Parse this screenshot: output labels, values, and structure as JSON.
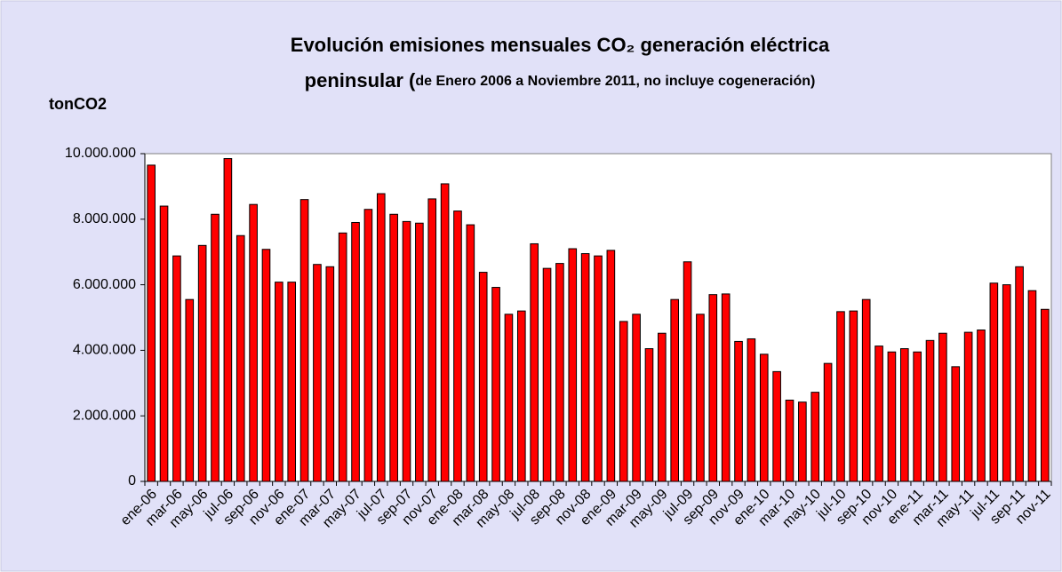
{
  "chart_data": {
    "type": "bar",
    "title_lines": [
      "Evolución emisiones mensuales CO₂ generación eléctrica",
      "peninsular ("
    ],
    "subtitle": "de Enero 2006 a Noviembre 2011, no incluye cogeneración)",
    "y_label": "tonCO2",
    "categories": [
      "ene-06",
      null,
      "mar-06",
      null,
      "may-06",
      null,
      "jul-06",
      null,
      "sep-06",
      null,
      "nov-06",
      null,
      "ene-07",
      null,
      "mar-07",
      null,
      "may-07",
      null,
      "jul-07",
      null,
      "sep-07",
      null,
      "nov-07",
      null,
      "ene-08",
      null,
      "mar-08",
      null,
      "may-08",
      null,
      "jul-08",
      null,
      "sep-08",
      null,
      "nov-08",
      null,
      "ene-09",
      null,
      "mar-09",
      null,
      "may-09",
      null,
      "jul-09",
      null,
      "sep-09",
      null,
      "nov-09",
      null,
      "ene-10",
      null,
      "mar-10",
      null,
      "may-10",
      null,
      "jul-10",
      null,
      "sep-10",
      null,
      "nov-10",
      null,
      "ene-11",
      null,
      "mar-11",
      null,
      "may-11",
      null,
      "jul-11",
      null,
      "sep-11",
      null,
      "nov-11"
    ],
    "values": [
      9650000,
      8400000,
      6880000,
      5550000,
      7200000,
      8150000,
      9850000,
      7500000,
      8450000,
      7080000,
      6080000,
      6080000,
      8600000,
      6620000,
      6550000,
      7580000,
      7900000,
      8300000,
      8780000,
      8150000,
      7930000,
      7880000,
      8620000,
      9080000,
      8250000,
      7830000,
      6380000,
      5920000,
      5100000,
      5200000,
      7250000,
      6500000,
      6650000,
      7100000,
      6950000,
      6880000,
      7050000,
      4880000,
      5100000,
      4050000,
      4520000,
      5550000,
      6700000,
      5100000,
      5700000,
      5720000,
      4270000,
      4350000,
      3880000,
      3350000,
      2480000,
      2420000,
      2720000,
      3600000,
      5180000,
      5200000,
      5550000,
      4130000,
      3950000,
      4050000,
      3950000,
      4300000,
      4520000,
      3500000,
      4550000,
      4620000,
      6050000,
      6000000,
      6550000,
      5820000,
      5250000
    ],
    "color": "#ff0000",
    "ylim": [
      0,
      10000000
    ],
    "yticks": [
      0,
      {
        "value": 2000000,
        "label": "2.000.000"
      },
      {
        "value": 4000000,
        "label": "4.000.000"
      },
      {
        "value": 6000000,
        "label": "6.000.000"
      },
      {
        "value": 8000000,
        "label": "8.000.000"
      },
      {
        "value": 10000000,
        "label": "10.000.000"
      }
    ],
    "grid": false
  }
}
